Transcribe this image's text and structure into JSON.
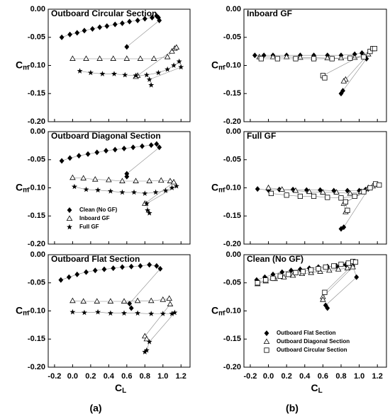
{
  "captions": [
    "(a)",
    "(b)"
  ],
  "chart_data": [
    {
      "type": "scatter",
      "title": "Outboard Circular Section",
      "ylabel": {
        "text": "C",
        "sub": "m"
      },
      "xlim": [
        -0.27,
        1.3
      ],
      "ylim": [
        -0.2,
        0
      ],
      "xticks": [
        -0.2,
        0,
        0.2,
        0.4,
        0.6,
        0.8,
        1,
        1.2
      ],
      "yticks": [
        {
          "value": 0,
          "label": "0.00"
        },
        {
          "value": -0.05,
          "label": "-0.05"
        },
        {
          "value": -0.1,
          "label": "-0.10"
        },
        {
          "value": -0.15,
          "label": "-0.15"
        },
        {
          "value": -0.2,
          "label": "-0.20"
        }
      ],
      "series": [
        {
          "marker": "diamond",
          "color": "#000000",
          "x": [
            -0.12,
            -0.03,
            0.05,
            0.13,
            0.22,
            0.3,
            0.38,
            0.47,
            0.55,
            0.63,
            0.72,
            0.8,
            0.88,
            0.93,
            0.95,
            0.96,
            0.6
          ],
          "values": [
            -0.05,
            -0.045,
            -0.042,
            -0.038,
            -0.035,
            -0.032,
            -0.03,
            -0.027,
            -0.025,
            -0.022,
            -0.02,
            -0.017,
            -0.015,
            -0.012,
            -0.015,
            -0.02,
            -0.067
          ]
        },
        {
          "marker": "triangle",
          "color": "#000000",
          "x": [
            0.0,
            0.15,
            0.3,
            0.45,
            0.6,
            0.75,
            0.9,
            1.05,
            1.1,
            1.13,
            1.15,
            0.72,
            0.7
          ],
          "values": [
            -0.088,
            -0.088,
            -0.088,
            -0.088,
            -0.088,
            -0.088,
            -0.088,
            -0.085,
            -0.075,
            -0.07,
            -0.068,
            -0.118,
            -0.12
          ]
        },
        {
          "marker": "star",
          "color": "#000000",
          "x": [
            0.08,
            0.2,
            0.33,
            0.46,
            0.58,
            0.7,
            0.82,
            0.95,
            1.05,
            1.12,
            1.18,
            1.2,
            0.85,
            0.87
          ],
          "values": [
            -0.11,
            -0.113,
            -0.115,
            -0.115,
            -0.117,
            -0.118,
            -0.117,
            -0.113,
            -0.107,
            -0.1,
            -0.093,
            -0.103,
            -0.125,
            -0.135
          ]
        }
      ]
    },
    {
      "type": "scatter",
      "title": "Outboard Diagonal Section",
      "ylabel": {
        "text": "C",
        "sub": "m"
      },
      "xlim": [
        -0.27,
        1.3
      ],
      "ylim": [
        -0.2,
        0
      ],
      "xticks": [
        -0.2,
        0,
        0.2,
        0.4,
        0.6,
        0.8,
        1,
        1.2
      ],
      "yticks": [
        {
          "value": 0,
          "label": "0.00"
        },
        {
          "value": -0.05,
          "label": "-0.05"
        },
        {
          "value": -0.1,
          "label": "-0.10"
        },
        {
          "value": -0.15,
          "label": "-0.15"
        },
        {
          "value": -0.2,
          "label": "-0.20"
        }
      ],
      "legend": "lower-left",
      "series": [
        {
          "name": "Clean (No GF)",
          "marker": "diamond",
          "color": "#000000",
          "x": [
            -0.12,
            -0.03,
            0.07,
            0.17,
            0.27,
            0.37,
            0.47,
            0.57,
            0.67,
            0.77,
            0.87,
            0.93,
            0.96,
            0.6,
            0.6
          ],
          "values": [
            -0.052,
            -0.047,
            -0.043,
            -0.04,
            -0.037,
            -0.034,
            -0.032,
            -0.03,
            -0.028,
            -0.026,
            -0.024,
            -0.022,
            -0.028,
            -0.075,
            -0.08
          ]
        },
        {
          "name": "Inboard GF",
          "marker": "triangle",
          "color": "#000000",
          "x": [
            0.0,
            0.12,
            0.25,
            0.4,
            0.55,
            0.7,
            0.85,
            0.98,
            1.08,
            1.12,
            0.8
          ],
          "values": [
            -0.082,
            -0.083,
            -0.085,
            -0.086,
            -0.088,
            -0.088,
            -0.088,
            -0.087,
            -0.088,
            -0.09,
            -0.128
          ]
        },
        {
          "name": "Full GF",
          "marker": "star",
          "color": "#000000",
          "x": [
            0.02,
            0.15,
            0.28,
            0.42,
            0.55,
            0.68,
            0.8,
            0.92,
            1.03,
            1.1,
            1.15,
            0.82,
            0.83,
            0.85
          ],
          "values": [
            -0.098,
            -0.103,
            -0.104,
            -0.106,
            -0.108,
            -0.108,
            -0.11,
            -0.108,
            -0.105,
            -0.1,
            -0.097,
            -0.128,
            -0.14,
            -0.145
          ]
        }
      ]
    },
    {
      "type": "scatter",
      "title": "Outboard Flat Section",
      "ylabel": {
        "text": "C",
        "sub": "m"
      },
      "xlabel": {
        "text": "C",
        "sub": "L"
      },
      "xlim": [
        -0.27,
        1.3
      ],
      "ylim": [
        -0.2,
        0
      ],
      "xticks": [
        -0.2,
        {
          "value": 0,
          "label": "0.0"
        },
        0.2,
        0.4,
        0.6,
        0.8,
        {
          "value": 1,
          "label": "1.0"
        },
        1.2
      ],
      "yticks": [
        {
          "value": 0,
          "label": "0.00"
        },
        {
          "value": -0.05,
          "label": "-0.05"
        },
        {
          "value": -0.1,
          "label": "-0.10"
        },
        {
          "value": -0.15,
          "label": "-0.15"
        },
        {
          "value": -0.2,
          "label": "-0.20"
        }
      ],
      "series": [
        {
          "marker": "diamond",
          "color": "#000000",
          "x": [
            -0.13,
            -0.04,
            0.05,
            0.15,
            0.25,
            0.35,
            0.45,
            0.55,
            0.65,
            0.75,
            0.85,
            0.93,
            0.97,
            0.63,
            0.65
          ],
          "values": [
            -0.045,
            -0.04,
            -0.035,
            -0.031,
            -0.028,
            -0.026,
            -0.024,
            -0.022,
            -0.021,
            -0.02,
            -0.018,
            -0.02,
            -0.025,
            -0.087,
            -0.095
          ]
        },
        {
          "marker": "triangle",
          "color": "#000000",
          "x": [
            0.0,
            0.12,
            0.27,
            0.42,
            0.57,
            0.72,
            0.87,
            1.0,
            1.07,
            1.08,
            0.8,
            0.82
          ],
          "values": [
            -0.082,
            -0.083,
            -0.083,
            -0.083,
            -0.083,
            -0.082,
            -0.082,
            -0.08,
            -0.078,
            -0.088,
            -0.145,
            -0.15
          ]
        },
        {
          "marker": "star",
          "color": "#000000",
          "x": [
            0.0,
            0.13,
            0.28,
            0.42,
            0.57,
            0.72,
            0.87,
            1.0,
            1.1,
            1.13,
            0.85,
            0.82,
            0.8
          ],
          "values": [
            -0.102,
            -0.103,
            -0.102,
            -0.104,
            -0.104,
            -0.104,
            -0.105,
            -0.105,
            -0.105,
            -0.103,
            -0.155,
            -0.17,
            -0.173
          ]
        }
      ]
    },
    {
      "type": "scatter",
      "title": "Inboard GF",
      "ylabel": {
        "text": "C",
        "sub": "m"
      },
      "xlim": [
        -0.27,
        1.3
      ],
      "ylim": [
        -0.2,
        0
      ],
      "xticks": [
        -0.2,
        0,
        0.2,
        0.4,
        0.6,
        0.8,
        1,
        1.2
      ],
      "yticks": [
        {
          "value": 0,
          "label": "0.00"
        },
        {
          "value": -0.05,
          "label": "-0.05"
        },
        {
          "value": -0.1,
          "label": "-0.10"
        },
        {
          "value": -0.15,
          "label": "-0.15"
        },
        {
          "value": -0.2,
          "label": "-0.20"
        }
      ],
      "series": [
        {
          "marker": "diamond",
          "color": "#000000",
          "x": [
            -0.15,
            -0.05,
            0.05,
            0.2,
            0.35,
            0.5,
            0.65,
            0.8,
            0.95,
            1.03,
            1.05,
            1.08,
            0.82,
            0.8
          ],
          "values": [
            -0.082,
            -0.082,
            -0.082,
            -0.082,
            -0.082,
            -0.082,
            -0.082,
            -0.082,
            -0.08,
            -0.078,
            -0.085,
            -0.088,
            -0.145,
            -0.15
          ]
        },
        {
          "marker": "triangle",
          "color": "#000000",
          "x": [
            -0.1,
            0.05,
            0.2,
            0.35,
            0.5,
            0.65,
            0.8,
            0.95,
            1.05,
            1.1,
            0.85,
            0.83
          ],
          "values": [
            -0.085,
            -0.085,
            -0.085,
            -0.086,
            -0.086,
            -0.087,
            -0.087,
            -0.086,
            -0.082,
            -0.08,
            -0.125,
            -0.128
          ]
        },
        {
          "marker": "square",
          "color": "#000000",
          "x": [
            -0.08,
            0.1,
            0.3,
            0.5,
            0.7,
            0.9,
            1.05,
            1.12,
            1.15,
            1.17,
            0.6,
            0.62
          ],
          "values": [
            -0.088,
            -0.088,
            -0.088,
            -0.088,
            -0.088,
            -0.087,
            -0.085,
            -0.075,
            -0.07,
            -0.07,
            -0.118,
            -0.122
          ]
        }
      ]
    },
    {
      "type": "scatter",
      "title": "Full GF",
      "ylabel": {
        "text": "C",
        "sub": "m"
      },
      "xlim": [
        -0.27,
        1.3
      ],
      "ylim": [
        -0.2,
        0
      ],
      "xticks": [
        -0.2,
        0,
        0.2,
        0.4,
        0.6,
        0.8,
        1,
        1.2
      ],
      "yticks": [
        {
          "value": 0,
          "label": "0.00"
        },
        {
          "value": -0.05,
          "label": "-0.05"
        },
        {
          "value": -0.1,
          "label": "-0.10"
        },
        {
          "value": -0.15,
          "label": "-0.15"
        },
        {
          "value": -0.2,
          "label": "-0.20"
        }
      ],
      "series": [
        {
          "marker": "diamond",
          "color": "#000000",
          "x": [
            -0.12,
            0.0,
            0.12,
            0.27,
            0.42,
            0.57,
            0.72,
            0.87,
            1.0,
            1.07,
            1.1,
            0.83,
            0.8
          ],
          "values": [
            -0.102,
            -0.104,
            -0.103,
            -0.103,
            -0.104,
            -0.104,
            -0.105,
            -0.105,
            -0.105,
            -0.103,
            -0.102,
            -0.17,
            -0.173
          ]
        },
        {
          "marker": "triangle",
          "color": "#000000",
          "x": [
            0.0,
            0.15,
            0.3,
            0.45,
            0.6,
            0.75,
            0.9,
            1.02,
            1.1,
            1.15,
            0.83,
            0.85
          ],
          "values": [
            -0.1,
            -0.103,
            -0.105,
            -0.107,
            -0.108,
            -0.108,
            -0.11,
            -0.107,
            -0.1,
            -0.097,
            -0.128,
            -0.143
          ]
        },
        {
          "marker": "square",
          "color": "#000000",
          "x": [
            0.03,
            0.2,
            0.35,
            0.5,
            0.65,
            0.8,
            0.95,
            1.05,
            1.12,
            1.18,
            1.22,
            0.85,
            0.87
          ],
          "values": [
            -0.11,
            -0.113,
            -0.115,
            -0.115,
            -0.117,
            -0.118,
            -0.115,
            -0.107,
            -0.1,
            -0.093,
            -0.095,
            -0.125,
            -0.14
          ]
        }
      ]
    },
    {
      "type": "scatter",
      "title": "Clean (No GF)",
      "ylabel": {
        "text": "C",
        "sub": "m"
      },
      "xlabel": {
        "text": "C",
        "sub": "L"
      },
      "xlim": [
        -0.27,
        1.3
      ],
      "ylim": [
        -0.2,
        0
      ],
      "xticks": [
        -0.2,
        {
          "value": 0,
          "label": "0.0"
        },
        0.2,
        0.4,
        0.6,
        0.8,
        {
          "value": 1,
          "label": "1.0"
        },
        1.2
      ],
      "yticks": [
        {
          "value": 0,
          "label": "0.00"
        },
        {
          "value": -0.05,
          "label": "-0.05"
        },
        {
          "value": -0.1,
          "label": "-0.10"
        },
        {
          "value": -0.15,
          "label": "-0.15"
        },
        {
          "value": -0.2,
          "label": "-0.20"
        }
      ],
      "legend": "lower-center",
      "series": [
        {
          "name": "Outboard Flat Section",
          "marker": "diamond",
          "color": "#000000",
          "x": [
            -0.13,
            -0.04,
            0.05,
            0.15,
            0.25,
            0.35,
            0.45,
            0.55,
            0.65,
            0.75,
            0.85,
            0.93,
            0.97,
            0.63,
            0.65
          ],
          "values": [
            -0.045,
            -0.04,
            -0.035,
            -0.031,
            -0.028,
            -0.026,
            -0.024,
            -0.022,
            -0.021,
            -0.02,
            -0.018,
            -0.02,
            -0.04,
            -0.09,
            -0.095
          ]
        },
        {
          "name": "Outboard Diagonal Section",
          "marker": "triangle",
          "color": "#000000",
          "x": [
            -0.12,
            -0.03,
            0.07,
            0.17,
            0.27,
            0.37,
            0.47,
            0.57,
            0.67,
            0.77,
            0.87,
            0.93,
            0.6,
            0.6
          ],
          "values": [
            -0.052,
            -0.047,
            -0.043,
            -0.04,
            -0.037,
            -0.034,
            -0.032,
            -0.03,
            -0.028,
            -0.026,
            -0.024,
            -0.022,
            -0.075,
            -0.08
          ]
        },
        {
          "name": "Outboard Circular Section",
          "marker": "square",
          "color": "#000000",
          "x": [
            -0.12,
            -0.03,
            0.05,
            0.13,
            0.22,
            0.3,
            0.38,
            0.47,
            0.55,
            0.63,
            0.72,
            0.8,
            0.88,
            0.93,
            0.96,
            0.62
          ],
          "values": [
            -0.05,
            -0.045,
            -0.042,
            -0.038,
            -0.035,
            -0.032,
            -0.03,
            -0.027,
            -0.025,
            -0.022,
            -0.02,
            -0.017,
            -0.015,
            -0.012,
            -0.013,
            -0.067
          ]
        }
      ]
    }
  ]
}
